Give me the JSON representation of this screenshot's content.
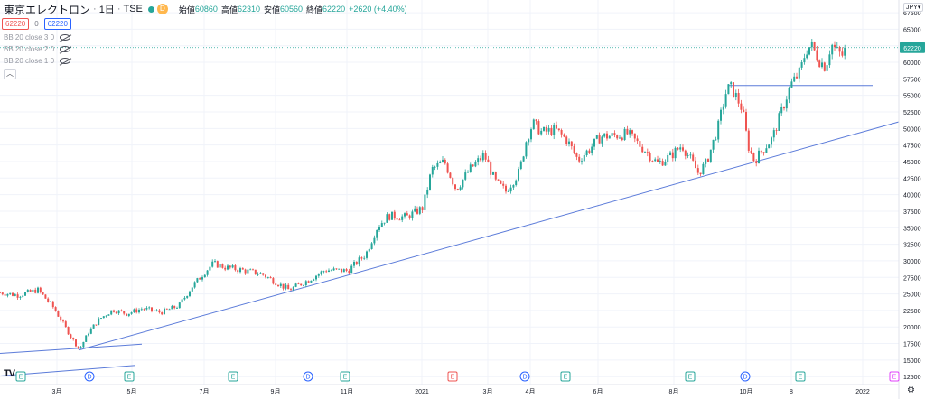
{
  "header": {
    "title": "東京エレクトロン",
    "interval": "1日",
    "exchange": "TSE",
    "badge": "D",
    "open_label": "始値",
    "open": "60860",
    "high_label": "高値",
    "high": "62310",
    "low_label": "安値",
    "low": "60560",
    "close_label": "終値",
    "close": "62220",
    "change": "+2620 (+4.40%)"
  },
  "price_boxes": {
    "bid": "62220",
    "spread": "0",
    "ask": "62220"
  },
  "indicators": [
    "BB 20 close 3 0",
    "BB 20 close 2 0",
    "BB 20 close 1 0"
  ],
  "currency": "JPY",
  "logo": "TV",
  "last_price_label": "62220",
  "colors": {
    "up": "#26a69a",
    "down": "#ef5350",
    "trend": "#5b7bd9",
    "dividend": "#2962ff",
    "earnings": "#26a69a",
    "grid": "#f0f3fa"
  },
  "chart_data": {
    "type": "candlestick",
    "y_ticks": [
      12500,
      15000,
      17500,
      20000,
      22500,
      25000,
      27500,
      30000,
      32500,
      35000,
      37500,
      40000,
      42500,
      45000,
      47500,
      50000,
      52500,
      55000,
      57500,
      60000,
      62500,
      65000,
      67500
    ],
    "ylim": [
      11300,
      68600
    ],
    "x_ticks": [
      {
        "label": "3月",
        "d": 63
      },
      {
        "label": "5月",
        "d": 146
      },
      {
        "label": "7月",
        "d": 226
      },
      {
        "label": "9月",
        "d": 305
      },
      {
        "label": "11月",
        "d": 384
      },
      {
        "label": "2021",
        "d": 467
      },
      {
        "label": "3月",
        "d": 540
      },
      {
        "label": "4月",
        "d": 587
      },
      {
        "label": "6月",
        "d": 662
      },
      {
        "label": "8月",
        "d": 746
      },
      {
        "label": "10月",
        "d": 826
      },
      {
        "label": "8",
        "d": 876
      },
      {
        "label": "2022",
        "d": 955
      }
    ],
    "xlim": [
      0,
      995
    ],
    "last_price": 62220,
    "events": [
      {
        "type": "E",
        "d": 23
      },
      {
        "type": "D",
        "d": 99
      },
      {
        "type": "E",
        "d": 143
      },
      {
        "type": "E",
        "d": 258
      },
      {
        "type": "D",
        "d": 341
      },
      {
        "type": "E",
        "d": 382
      },
      {
        "type": "E",
        "d": 501,
        "red": true
      },
      {
        "type": "D",
        "d": 581
      },
      {
        "type": "E",
        "d": 626
      },
      {
        "type": "E",
        "d": 764
      },
      {
        "type": "D",
        "d": 825
      },
      {
        "type": "E",
        "d": 886
      },
      {
        "type": "E",
        "d": 990,
        "purple": true
      }
    ],
    "trendlines": [
      {
        "d1": 87,
        "v1": 16500,
        "d2": 995,
        "v2": 51000
      },
      {
        "d1": 0,
        "v1": 16000,
        "d2": 157,
        "v2": 17400
      },
      {
        "d1": 0,
        "v1": 12600,
        "d2": 150,
        "v2": 14200
      },
      {
        "d1": 806,
        "v1": 56500,
        "d2": 966,
        "v2": 56500
      }
    ],
    "path": [
      [
        0,
        25200
      ],
      [
        20,
        24800
      ],
      [
        42,
        25600
      ],
      [
        58,
        23200
      ],
      [
        70,
        20500
      ],
      [
        80,
        18200
      ],
      [
        88,
        16600
      ],
      [
        98,
        19200
      ],
      [
        110,
        21200
      ],
      [
        125,
        22600
      ],
      [
        140,
        22000
      ],
      [
        158,
        22800
      ],
      [
        178,
        22200
      ],
      [
        198,
        23200
      ],
      [
        212,
        26000
      ],
      [
        226,
        28200
      ],
      [
        236,
        29600
      ],
      [
        250,
        29000
      ],
      [
        268,
        28600
      ],
      [
        290,
        28000
      ],
      [
        305,
        26800
      ],
      [
        320,
        25600
      ],
      [
        340,
        27000
      ],
      [
        360,
        28600
      ],
      [
        385,
        28500
      ],
      [
        405,
        31000
      ],
      [
        418,
        35200
      ],
      [
        430,
        36800
      ],
      [
        450,
        36600
      ],
      [
        468,
        38000
      ],
      [
        478,
        43800
      ],
      [
        492,
        45000
      ],
      [
        505,
        40800
      ],
      [
        520,
        43800
      ],
      [
        536,
        46000
      ],
      [
        548,
        42000
      ],
      [
        560,
        40500
      ],
      [
        575,
        43500
      ],
      [
        583,
        48500
      ],
      [
        590,
        50800
      ],
      [
        600,
        49400
      ],
      [
        615,
        49800
      ],
      [
        628,
        48200
      ],
      [
        640,
        45200
      ],
      [
        652,
        46800
      ],
      [
        665,
        48800
      ],
      [
        680,
        48900
      ],
      [
        695,
        49200
      ],
      [
        712,
        47000
      ],
      [
        728,
        44700
      ],
      [
        742,
        45800
      ],
      [
        755,
        47500
      ],
      [
        765,
        45200
      ],
      [
        773,
        43300
      ],
      [
        782,
        44800
      ],
      [
        795,
        50200
      ],
      [
        803,
        55200
      ],
      [
        808,
        56400
      ],
      [
        815,
        54800
      ],
      [
        822,
        52800
      ],
      [
        828,
        47500
      ],
      [
        835,
        45100
      ],
      [
        845,
        46900
      ],
      [
        855,
        48500
      ],
      [
        865,
        52500
      ],
      [
        875,
        56500
      ],
      [
        886,
        58600
      ],
      [
        892,
        61800
      ],
      [
        898,
        62600
      ],
      [
        906,
        60500
      ],
      [
        914,
        59300
      ],
      [
        920,
        62800
      ],
      [
        928,
        61400
      ],
      [
        936,
        60800
      ]
    ]
  }
}
